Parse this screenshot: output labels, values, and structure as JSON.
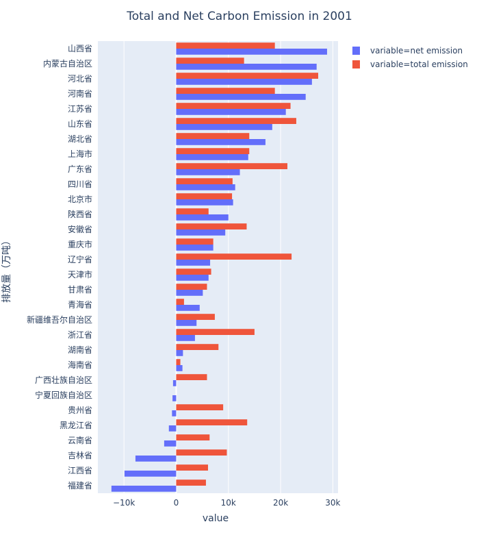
{
  "chart_data": {
    "type": "bar",
    "orientation": "horizontal",
    "barmode": "group",
    "title": "Total and Net Carbon Emission in 2001",
    "xlabel": "value",
    "ylabel": "排放量（万吨）",
    "xlim": [
      -15000,
      31000
    ],
    "xticks": [
      -10000,
      0,
      10000,
      20000,
      30000
    ],
    "xtick_labels": [
      "−10k",
      "0",
      "10k",
      "20k",
      "30k"
    ],
    "grid": true,
    "legend_position": "top-right",
    "categories": [
      "山西省",
      "内蒙古自治区",
      "河北省",
      "河南省",
      "江苏省",
      "山东省",
      "湖北省",
      "上海市",
      "广东省",
      "四川省",
      "北京市",
      "陕西省",
      "安徽省",
      "重庆市",
      "辽宁省",
      "天津市",
      "甘肃省",
      "青海省",
      "新疆维吾尔自治区",
      "浙江省",
      "湖南省",
      "海南省",
      "广西壮族自治区",
      "宁夏回族自治区",
      "贵州省",
      "黑龙江省",
      "云南省",
      "吉林省",
      "江西省",
      "福建省"
    ],
    "series": [
      {
        "name": "variable=net emission",
        "color": "#636efa",
        "values": [
          28900,
          26900,
          26000,
          24800,
          21000,
          18400,
          17100,
          13800,
          12200,
          11300,
          10900,
          10000,
          9400,
          7100,
          6500,
          6200,
          5100,
          4500,
          3900,
          3600,
          1300,
          1200,
          -600,
          -700,
          -800,
          -1400,
          -2300,
          -7800,
          -9900,
          -12400
        ]
      },
      {
        "name": "variable=total emission",
        "color": "#ef553b",
        "values": [
          18900,
          13000,
          27200,
          18900,
          21900,
          23000,
          14000,
          14000,
          21300,
          10800,
          10700,
          6200,
          13500,
          7100,
          22100,
          6700,
          5900,
          1500,
          7400,
          15000,
          8100,
          800,
          5900,
          0,
          9000,
          13600,
          6400,
          9700,
          6100,
          5700
        ]
      }
    ]
  }
}
